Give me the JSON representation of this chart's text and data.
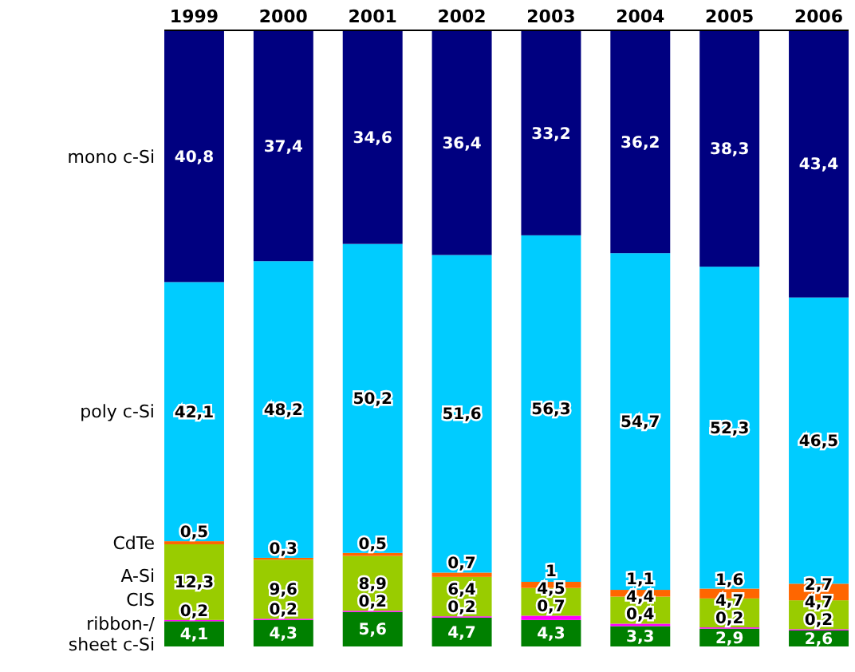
{
  "chart_data": {
    "type": "bar",
    "stacked": true,
    "legend": "left",
    "data_labels": false,
    "categories": [
      "1999",
      "2000",
      "2001",
      "2002",
      "2003",
      "2004",
      "2005",
      "2006"
    ],
    "series": [
      {
        "name": "ribbon-/ sheet c-Si",
        "color": "#008000",
        "values": [
          4.1,
          4.3,
          5.6,
          4.7,
          4.3,
          3.3,
          2.9,
          2.6
        ],
        "value_labels": [
          "4,1",
          "4,3",
          "5,6",
          "4,7",
          "4,3",
          "3,3",
          "2,9",
          "2,6"
        ]
      },
      {
        "name": "CIS",
        "color": "#ff00ff",
        "values": [
          0.2,
          0.2,
          0.2,
          0.2,
          0.7,
          0.4,
          0.2,
          0.2
        ],
        "value_labels": [
          "0,2",
          "0,2",
          "0,2",
          "0,2",
          "0,7",
          "0,4",
          "0,2",
          "0,2"
        ]
      },
      {
        "name": "A-Si",
        "color": "#99cc00",
        "values": [
          12.3,
          9.6,
          8.9,
          6.4,
          4.5,
          4.4,
          4.7,
          4.7
        ],
        "value_labels": [
          "12,3",
          "9,6",
          "8,9",
          "6,4",
          "4,5",
          "4,4",
          "4,7",
          "4,7"
        ]
      },
      {
        "name": "CdTe",
        "color": "#ff6600",
        "values": [
          0.5,
          0.3,
          0.5,
          0.7,
          1,
          1.1,
          1.6,
          2.7
        ],
        "value_labels": [
          "0,5",
          "0,3",
          "0,5",
          "0,7",
          "1",
          "1,1",
          "1,6",
          "2,7"
        ]
      },
      {
        "name": "poly c-Si",
        "color": "#00ccff",
        "values": [
          42.1,
          48.2,
          50.2,
          51.6,
          56.3,
          54.7,
          52.3,
          46.5
        ],
        "value_labels": [
          "42,1",
          "48,2",
          "50,2",
          "51,6",
          "56,3",
          "54,7",
          "52,3",
          "46,5"
        ]
      },
      {
        "name": "mono c-Si",
        "color": "#000080",
        "values": [
          40.8,
          37.4,
          34.6,
          36.4,
          33.2,
          36.2,
          38.3,
          43.4
        ],
        "value_labels": [
          "40,8",
          "37,4",
          "34,6",
          "36,4",
          "33,2",
          "36,2",
          "38,3",
          "43,4"
        ]
      }
    ]
  }
}
